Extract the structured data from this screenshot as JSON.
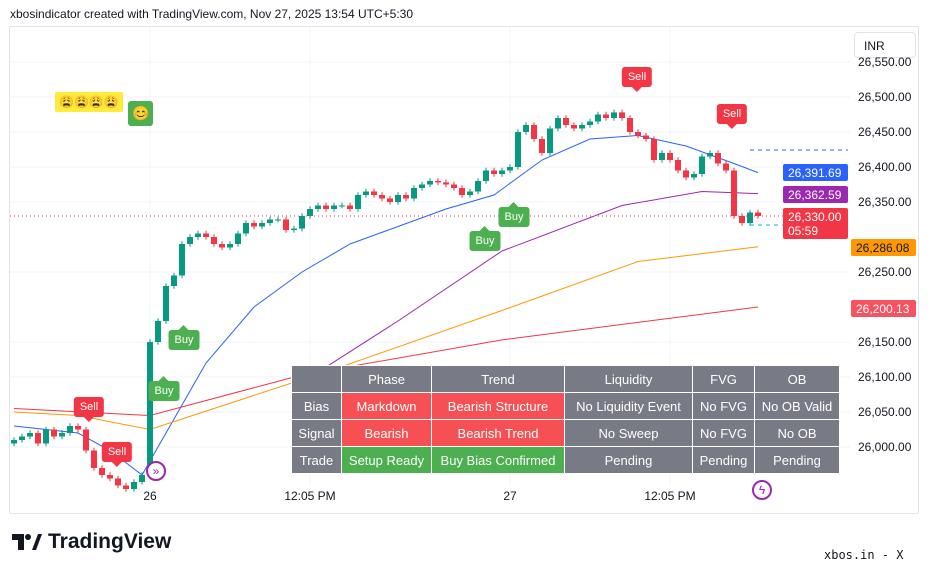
{
  "header": {
    "title": "xbosindicator created with TradingView.com, Nov 27, 2025 13:54 UTC+5:30"
  },
  "currency": "INR",
  "footer": {
    "logo": "TradingView",
    "watermark": "xbos.in - X"
  },
  "chart_data": {
    "type": "candlestick",
    "y_ticks": [
      "26,550.00",
      "26,500.00",
      "26,450.00",
      "26,400.00",
      "26,350.00",
      "26,250.00",
      "26,150.00",
      "26,100.00",
      "26,050.00",
      "26,000.00"
    ],
    "y_tick_values": [
      26550,
      26500,
      26450,
      26400,
      26350,
      26250,
      26150,
      26100,
      26050,
      26000
    ],
    "x_ticks": [
      "26",
      "12:05 PM",
      "27",
      "12:05 PM"
    ],
    "x_tick_index": [
      17,
      37,
      62,
      82
    ],
    "ylim": [
      25940,
      26580
    ],
    "closes": [
      26010,
      26015,
      26020,
      26005,
      26025,
      26015,
      26020,
      26030,
      26025,
      25995,
      25970,
      25960,
      25955,
      25945,
      25940,
      25950,
      25960,
      26150,
      26180,
      26230,
      26245,
      26290,
      26300,
      26305,
      26300,
      26290,
      26285,
      26290,
      26305,
      26320,
      26315,
      26320,
      26325,
      26325,
      26310,
      26312,
      26330,
      26340,
      26345,
      26340,
      26345,
      26345,
      26340,
      26360,
      26365,
      26360,
      26355,
      26350,
      26360,
      26355,
      26370,
      26375,
      26380,
      26378,
      26375,
      26370,
      26360,
      26365,
      26380,
      26395,
      26390,
      26395,
      26400,
      26450,
      26460,
      26440,
      26420,
      26455,
      26470,
      26460,
      26455,
      26460,
      26465,
      26475,
      26470,
      26478,
      26470,
      26450,
      26445,
      26440,
      26410,
      26420,
      26410,
      26395,
      26385,
      26390,
      26415,
      26420,
      26405,
      26395,
      26330,
      26320,
      26335,
      26330
    ],
    "series": [
      {
        "color": "#2962ff",
        "points": [
          [
            0,
            26030
          ],
          [
            8,
            26020
          ],
          [
            12,
            25995
          ],
          [
            16,
            25960
          ],
          [
            20,
            26040
          ],
          [
            24,
            26120
          ],
          [
            30,
            26200
          ],
          [
            36,
            26250
          ],
          [
            42,
            26290
          ],
          [
            48,
            26315
          ],
          [
            54,
            26340
          ],
          [
            60,
            26360
          ],
          [
            66,
            26410
          ],
          [
            72,
            26440
          ],
          [
            78,
            26445
          ],
          [
            84,
            26430
          ],
          [
            90,
            26405
          ],
          [
            93,
            26392
          ]
        ]
      },
      {
        "color": "#9c27b0",
        "points": [
          [
            35,
            26085
          ],
          [
            48,
            26180
          ],
          [
            61,
            26280
          ],
          [
            76,
            26345
          ],
          [
            86,
            26365
          ],
          [
            93,
            26362
          ]
        ]
      },
      {
        "color": "#ff9800",
        "points": [
          [
            0,
            26050
          ],
          [
            8,
            26045
          ],
          [
            17,
            26025
          ],
          [
            25,
            26055
          ],
          [
            41,
            26115
          ],
          [
            61,
            26195
          ],
          [
            78,
            26265
          ],
          [
            93,
            26286
          ]
        ]
      },
      {
        "color": "#f23645",
        "points": [
          [
            0,
            26055
          ],
          [
            17,
            26045
          ],
          [
            36,
            26103
          ],
          [
            61,
            26153
          ],
          [
            93,
            26200
          ]
        ]
      }
    ],
    "price_labels": [
      {
        "text": "26,391.69",
        "color": "#2962ff"
      },
      {
        "text": "26,362.59",
        "color": "#9c27b0"
      },
      {
        "text": "26,330.00",
        "sub": "05:59",
        "color": "#f23645"
      },
      {
        "text": "26,286.08",
        "color": "#ff9800"
      },
      {
        "text": "26,200.13",
        "color": "#f7525f"
      }
    ],
    "signals": {
      "sell": "Sell",
      "buy": "Buy"
    }
  },
  "table": {
    "headers": [
      "",
      "Phase",
      "Trend",
      "Liquidity",
      "FVG",
      "OB"
    ],
    "rows": [
      [
        "Bias",
        "Markdown",
        "Bearish Structure",
        "No Liquidity Event",
        "No FVG",
        "No OB Valid"
      ],
      [
        "Signal",
        "Bearish",
        "Bearish Trend",
        "No Sweep",
        "No FVG",
        "No OB"
      ],
      [
        "Trade",
        "Setup Ready",
        "Buy Bias Confirmed",
        "Pending",
        "Pending",
        "Pending"
      ]
    ]
  }
}
